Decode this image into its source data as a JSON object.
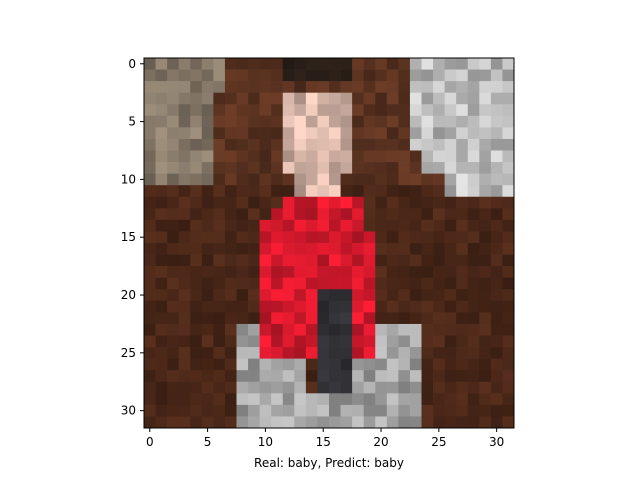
{
  "figure": {
    "xlabel": "Real: baby, Predict: baby"
  },
  "chart_data": {
    "type": "heatmap",
    "image_size": [
      32,
      32
    ],
    "xlim": [
      -0.5,
      31.5
    ],
    "ylim": [
      31.5,
      -0.5
    ],
    "x_ticks": [
      0,
      5,
      10,
      15,
      20,
      25,
      30
    ],
    "y_ticks": [
      0,
      5,
      10,
      15,
      20,
      25,
      30
    ],
    "xlabel": "Real: baby, Predict: baby",
    "real_label": "baby",
    "predicted_label": "baby",
    "regions": [
      {
        "name": "background-left-wall",
        "color": "#857868",
        "rows": [
          0,
          10
        ],
        "cols": [
          0,
          5
        ]
      },
      {
        "name": "background-right-curtain",
        "color": "#bdbdbd",
        "rows": [
          0,
          11
        ],
        "cols": [
          23,
          31
        ]
      },
      {
        "name": "background-top-dark",
        "color": "#2a1f18",
        "rows": [
          0,
          1
        ],
        "cols": [
          12,
          17
        ]
      },
      {
        "name": "face",
        "color": "#d4b3a6",
        "rows": [
          3,
          11
        ],
        "cols": [
          12,
          17
        ]
      },
      {
        "name": "red-shirt",
        "color": "#d3192c",
        "rows": [
          12,
          25
        ],
        "cols": [
          10,
          19
        ]
      },
      {
        "name": "grey-pants",
        "color": "#a3a3a3",
        "rows": [
          23,
          31
        ],
        "cols": [
          8,
          23
        ]
      },
      {
        "name": "brown-blanket",
        "color": "#4a2718",
        "rows": [
          11,
          31
        ],
        "cols": [
          0,
          31
        ]
      }
    ]
  }
}
